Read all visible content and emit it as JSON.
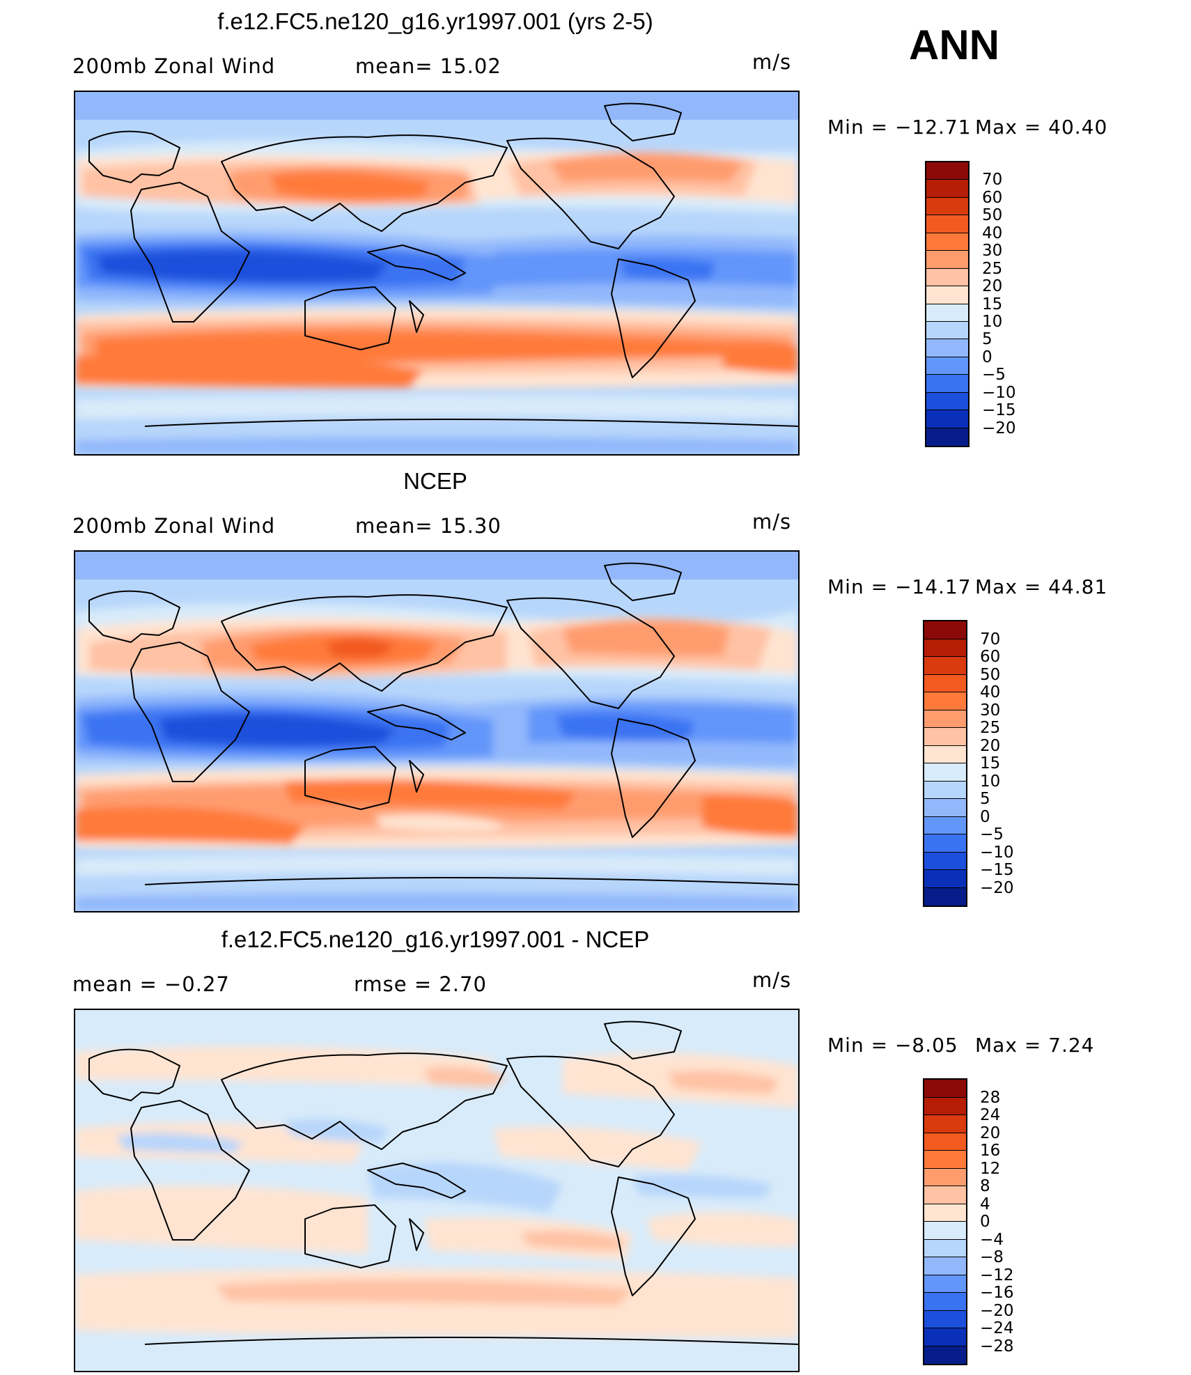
{
  "season": "ANN",
  "panels": [
    {
      "id": "model",
      "title": "f.e12.FC5.ne120_g16.yr1997.001 (yrs 2-5)",
      "left_label": "200mb Zonal Wind",
      "mid_label": "mean=   15.02",
      "units": "m/s",
      "min_label": "Min  =  −12.71",
      "max_label": "Max  =   40.40",
      "colorbar_ticks": [
        "70",
        "60",
        "50",
        "40",
        "30",
        "25",
        "20",
        "15",
        "10",
        "5",
        "0",
        "−5",
        "−10",
        "−15",
        "−20"
      ],
      "colorbar_colors": [
        "#8b0a07",
        "#b51d04",
        "#d93a0e",
        "#f25a20",
        "#ff7a3a",
        "#ff9c6e",
        "#ffc2a4",
        "#ffe4d1",
        "#d8ebfa",
        "#b7d6fb",
        "#92b8fb",
        "#6396fa",
        "#3a73f2",
        "#1c4fdb",
        "#0a2fb8",
        "#061d8a"
      ]
    },
    {
      "id": "obs",
      "title": "NCEP",
      "left_label": "200mb Zonal Wind",
      "mid_label": "mean=   15.30",
      "units": "m/s",
      "min_label": "Min  =  −14.17",
      "max_label": "Max  =   44.81",
      "colorbar_ticks": [
        "70",
        "60",
        "50",
        "40",
        "30",
        "25",
        "20",
        "15",
        "10",
        "5",
        "0",
        "−5",
        "−10",
        "−15",
        "−20"
      ],
      "colorbar_colors": [
        "#8b0a07",
        "#b51d04",
        "#d93a0e",
        "#f25a20",
        "#ff7a3a",
        "#ff9c6e",
        "#ffc2a4",
        "#ffe4d1",
        "#d8ebfa",
        "#b7d6fb",
        "#92b8fb",
        "#6396fa",
        "#3a73f2",
        "#1c4fdb",
        "#0a2fb8",
        "#061d8a"
      ]
    },
    {
      "id": "diff",
      "title": "f.e12.FC5.ne120_g16.yr1997.001 - NCEP",
      "left_label": "mean  =    −0.27",
      "mid_label": "rmse  =     2.70",
      "units": "m/s",
      "min_label": "Min  =    −8.05",
      "max_label": "Max  =     7.24",
      "colorbar_ticks": [
        "28",
        "24",
        "20",
        "16",
        "12",
        "8",
        "4",
        "0",
        "−4",
        "−8",
        "−12",
        "−16",
        "−20",
        "−24",
        "−28"
      ],
      "colorbar_colors": [
        "#8b0a07",
        "#b51d04",
        "#d93a0e",
        "#f25a20",
        "#ff7a3a",
        "#ff9c6e",
        "#ffc2a4",
        "#ffe4d1",
        "#d8ebfa",
        "#b7d6fb",
        "#92b8fb",
        "#6396fa",
        "#3a73f2",
        "#1c4fdb",
        "#0a2fb8",
        "#061d8a"
      ]
    }
  ]
}
